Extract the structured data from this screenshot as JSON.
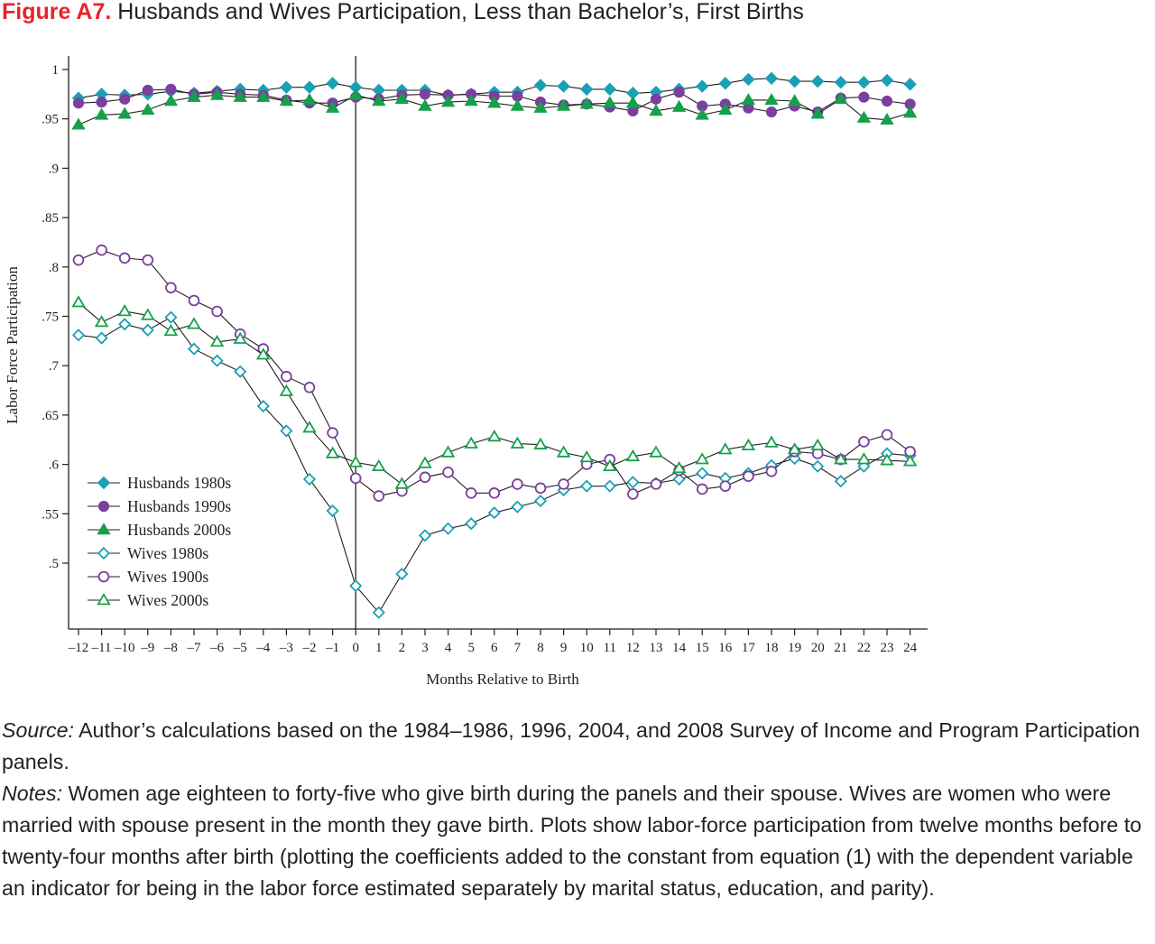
{
  "figure": {
    "label": "Figure A7.",
    "title": "Husbands and Wives Participation, Less than Bachelor’s, First Births"
  },
  "source": {
    "label": "Source:",
    "text": "Author’s calculations based on the 1984–1986, 1996, 2004, and 2008 Survey of Income and Program Participation panels."
  },
  "notes": {
    "label": "Notes:",
    "text": "Women age eighteen to forty-five who give birth during the panels and their spouse. Wives are women who were married with spouse present in the month they gave birth. Plots show labor-force participation from twelve months before to twenty-four months after birth (plotting the coefficients added to the constant from equation (1) with the dependent variable an indicator for being in the labor force estimated separately by marital status, education, and parity)."
  },
  "chart_data": {
    "type": "line",
    "title": "Husbands and Wives Participation, Less than Bachelor’s, First Births",
    "xlabel": "Months Relative to Birth",
    "ylabel": "Labor Force Participation",
    "xlim": [
      -12,
      24
    ],
    "ylim": [
      0.445,
      1.01
    ],
    "x": [
      -12,
      -11,
      -10,
      -9,
      -8,
      -7,
      -6,
      -5,
      -4,
      -3,
      -2,
      -1,
      0,
      1,
      2,
      3,
      4,
      5,
      6,
      7,
      8,
      9,
      10,
      11,
      12,
      13,
      14,
      15,
      16,
      17,
      18,
      19,
      20,
      21,
      22,
      23,
      24
    ],
    "x_tick_labels": [
      "–12",
      "–11",
      "–10",
      "–9",
      "–8",
      "–7",
      "–6",
      "–5",
      "–4",
      "–3",
      "–2",
      "–1",
      "0",
      "1",
      "2",
      "3",
      "4",
      "5",
      "6",
      "7",
      "8",
      "9",
      "10",
      "11",
      "12",
      "13",
      "14",
      "15",
      "16",
      "17",
      "18",
      "19",
      "20",
      "21",
      "22",
      "23",
      "24"
    ],
    "y_ticks": [
      1,
      0.95,
      0.9,
      0.85,
      0.8,
      0.75,
      0.7,
      0.65,
      0.6,
      0.55,
      0.5
    ],
    "y_tick_labels": [
      "1",
      ".95",
      ".9",
      ".85",
      ".8",
      ".75",
      ".7",
      ".65",
      ".6",
      ".55",
      ".5"
    ],
    "reference_line_x": 0,
    "grid": false,
    "legend_position": "bottom-left",
    "series": [
      {
        "name": "Husbands 1980s",
        "marker": "diamond",
        "filled": true,
        "color": "#1aa0b5",
        "values": [
          0.971,
          0.975,
          0.974,
          0.975,
          0.978,
          0.976,
          0.978,
          0.98,
          0.979,
          0.982,
          0.982,
          0.986,
          0.982,
          0.979,
          0.979,
          0.979,
          0.974,
          0.975,
          0.977,
          0.977,
          0.984,
          0.983,
          0.98,
          0.98,
          0.976,
          0.977,
          0.98,
          0.983,
          0.986,
          0.99,
          0.991,
          0.988,
          0.988,
          0.987,
          0.987,
          0.989,
          0.985
        ]
      },
      {
        "name": "Husbands 1990s",
        "marker": "circle",
        "filled": true,
        "color": "#7b3f9e",
        "values": [
          0.966,
          0.967,
          0.97,
          0.979,
          0.98,
          0.975,
          0.977,
          0.975,
          0.974,
          0.969,
          0.966,
          0.966,
          0.972,
          0.97,
          0.974,
          0.975,
          0.974,
          0.975,
          0.973,
          0.973,
          0.967,
          0.964,
          0.965,
          0.962,
          0.958,
          0.97,
          0.977,
          0.963,
          0.965,
          0.961,
          0.957,
          0.963,
          0.957,
          0.971,
          0.972,
          0.968,
          0.965
        ]
      },
      {
        "name": "Husbands 2000s",
        "marker": "triangle",
        "filled": true,
        "color": "#15a14a",
        "values": [
          0.944,
          0.954,
          0.955,
          0.959,
          0.968,
          0.972,
          0.974,
          0.972,
          0.972,
          0.968,
          0.969,
          0.961,
          0.974,
          0.968,
          0.97,
          0.963,
          0.967,
          0.968,
          0.966,
          0.963,
          0.961,
          0.963,
          0.965,
          0.966,
          0.966,
          0.958,
          0.962,
          0.954,
          0.959,
          0.969,
          0.969,
          0.968,
          0.955,
          0.97,
          0.951,
          0.949,
          0.956
        ]
      },
      {
        "name": "Wives 1980s",
        "marker": "diamond",
        "filled": false,
        "color": "#1aa0b5",
        "values": [
          0.731,
          0.728,
          0.742,
          0.736,
          0.749,
          0.717,
          0.705,
          0.694,
          0.659,
          0.634,
          0.585,
          0.553,
          0.477,
          0.45,
          0.489,
          0.528,
          0.535,
          0.54,
          0.551,
          0.557,
          0.563,
          0.574,
          0.578,
          0.578,
          0.582,
          0.581,
          0.585,
          0.591,
          0.586,
          0.591,
          0.599,
          0.606,
          0.598,
          0.583,
          0.598,
          0.611,
          0.609
        ]
      },
      {
        "name": "Wives 1900s",
        "marker": "circle",
        "filled": false,
        "color": "#7b3f9e",
        "values": [
          0.807,
          0.817,
          0.809,
          0.807,
          0.779,
          0.766,
          0.755,
          0.732,
          0.717,
          0.689,
          0.678,
          0.632,
          0.586,
          0.568,
          0.573,
          0.587,
          0.592,
          0.571,
          0.571,
          0.58,
          0.576,
          0.58,
          0.6,
          0.605,
          0.57,
          0.58,
          0.594,
          0.575,
          0.578,
          0.588,
          0.593,
          0.613,
          0.611,
          0.605,
          0.623,
          0.63,
          0.613
        ]
      },
      {
        "name": "Wives 2000s",
        "marker": "triangle",
        "filled": false,
        "color": "#15a14a",
        "values": [
          0.764,
          0.744,
          0.755,
          0.751,
          0.735,
          0.742,
          0.724,
          0.727,
          0.711,
          0.674,
          0.637,
          0.611,
          0.602,
          0.598,
          0.58,
          0.601,
          0.612,
          0.621,
          0.628,
          0.621,
          0.62,
          0.612,
          0.607,
          0.598,
          0.608,
          0.612,
          0.596,
          0.605,
          0.615,
          0.619,
          0.622,
          0.615,
          0.619,
          0.605,
          0.605,
          0.604,
          0.603
        ]
      }
    ]
  }
}
